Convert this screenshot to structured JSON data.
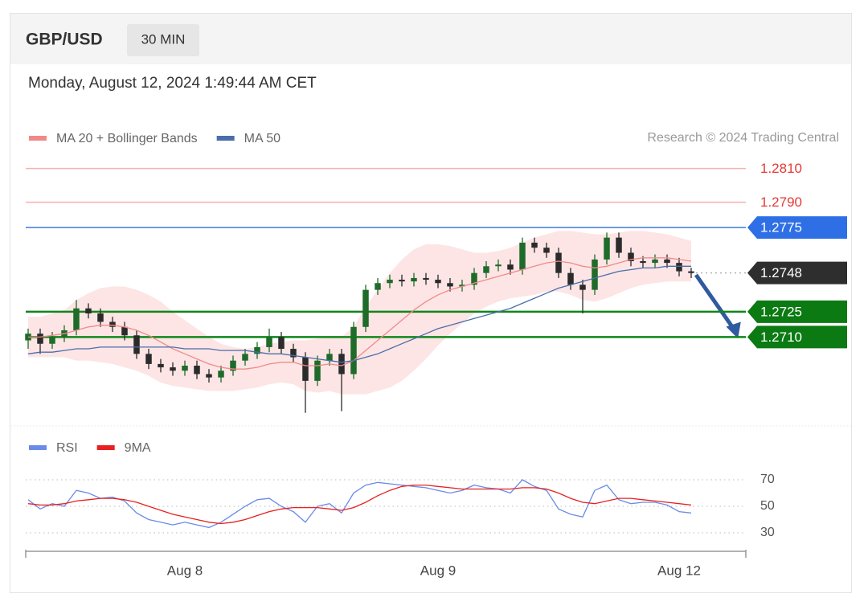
{
  "header": {
    "symbol": "GBP/USD",
    "timeframe": "30 MIN",
    "timestamp": "Monday, August 12, 2024 1:49:44 AM CET"
  },
  "chart_data": [
    {
      "type": "candlestick",
      "source": "Research © 2024 Trading Central",
      "ylim": [
        1.2662,
        1.2817
      ],
      "up_color": "#1e6b2a",
      "down_color": "#2b2b2b",
      "open": [
        1.2708,
        1.2712,
        1.2706,
        1.271,
        1.2714,
        1.2727,
        1.2724,
        1.2719,
        1.2716,
        1.2711,
        1.27,
        1.2694,
        1.2692,
        1.269,
        1.2693,
        1.2688,
        1.2686,
        1.269,
        1.2696,
        1.27,
        1.2704,
        1.271,
        1.2703,
        1.2698,
        1.2684,
        1.2696,
        1.27,
        1.2688,
        1.2716,
        1.2738,
        1.2742,
        1.2744,
        1.2743,
        1.2745,
        1.2744,
        1.2742,
        1.274,
        1.2741,
        1.2748,
        1.2752,
        1.2753,
        1.275,
        1.2766,
        1.2763,
        1.276,
        1.2748,
        1.2741,
        1.2738,
        1.2756,
        1.2769,
        1.276,
        1.2755,
        1.2754,
        1.2756,
        1.2754,
        1.2749
      ],
      "high": [
        1.2715,
        1.2715,
        1.2713,
        1.2717,
        1.2732,
        1.273,
        1.2727,
        1.2722,
        1.2719,
        1.2714,
        1.2703,
        1.2697,
        1.2695,
        1.2696,
        1.2696,
        1.2691,
        1.2693,
        1.2699,
        1.2703,
        1.2707,
        1.2715,
        1.2713,
        1.2706,
        1.2701,
        1.2699,
        1.2703,
        1.2703,
        1.2719,
        1.2741,
        1.2745,
        1.2747,
        1.2747,
        1.2748,
        1.2748,
        1.2747,
        1.2745,
        1.2744,
        1.2751,
        1.2755,
        1.2756,
        1.2756,
        1.2769,
        1.2769,
        1.2766,
        1.2763,
        1.2751,
        1.2744,
        1.2759,
        1.2772,
        1.2772,
        1.2763,
        1.2758,
        1.2759,
        1.2759,
        1.2757,
        1.2751
      ],
      "low": [
        1.2703,
        1.27,
        1.2703,
        1.2707,
        1.2711,
        1.2721,
        1.2716,
        1.2713,
        1.2708,
        1.2697,
        1.2691,
        1.2689,
        1.2687,
        1.2687,
        1.2685,
        1.2683,
        1.2683,
        1.2687,
        1.2693,
        1.2697,
        1.2701,
        1.27,
        1.2695,
        1.2665,
        1.2681,
        1.2693,
        1.2666,
        1.2685,
        1.2713,
        1.2735,
        1.2739,
        1.274,
        1.274,
        1.2741,
        1.2739,
        1.2737,
        1.2737,
        1.2738,
        1.2745,
        1.2749,
        1.2747,
        1.2747,
        1.276,
        1.2757,
        1.2745,
        1.2738,
        1.2724,
        1.2735,
        1.2753,
        1.2757,
        1.2752,
        1.2751,
        1.2751,
        1.2751,
        1.2746,
        1.2745
      ],
      "close": [
        1.2712,
        1.2706,
        1.271,
        1.2714,
        1.2727,
        1.2724,
        1.2719,
        1.2716,
        1.2711,
        1.27,
        1.2694,
        1.2692,
        1.269,
        1.2693,
        1.2688,
        1.2686,
        1.269,
        1.2696,
        1.27,
        1.2704,
        1.271,
        1.2703,
        1.2698,
        1.2684,
        1.2696,
        1.27,
        1.2688,
        1.2716,
        1.2738,
        1.2742,
        1.2744,
        1.2743,
        1.2745,
        1.2744,
        1.2742,
        1.274,
        1.2741,
        1.2748,
        1.2752,
        1.2753,
        1.275,
        1.2766,
        1.2763,
        1.276,
        1.2748,
        1.2741,
        1.2738,
        1.2756,
        1.2769,
        1.276,
        1.2755,
        1.2754,
        1.2756,
        1.2754,
        1.2749,
        1.2748
      ],
      "series": [
        {
          "name": "MA 20 + Bollinger Bands",
          "color": "#f08a8a",
          "values": [
            1.271,
            1.271,
            1.2711,
            1.2712,
            1.2714,
            1.2716,
            1.2717,
            1.2717,
            1.2716,
            1.2714,
            1.2711,
            1.2707,
            1.2703,
            1.27,
            1.2697,
            1.2694,
            1.2692,
            1.2691,
            1.2691,
            1.2692,
            1.2694,
            1.2695,
            1.2695,
            1.2693,
            1.2693,
            1.2694,
            1.2693,
            1.2696,
            1.2702,
            1.2708,
            1.2714,
            1.272,
            1.2726,
            1.2731,
            1.2735,
            1.2738,
            1.274,
            1.2742,
            1.2744,
            1.2746,
            1.2748,
            1.275,
            1.2752,
            1.2754,
            1.2755,
            1.2754,
            1.2752,
            1.2751,
            1.2752,
            1.2754,
            1.2756,
            1.2757,
            1.2757,
            1.2757,
            1.2756,
            1.2755
          ],
          "band_color": "#fde0e0",
          "upper": [
            1.2722,
            1.2722,
            1.2724,
            1.2726,
            1.2732,
            1.2736,
            1.2739,
            1.274,
            1.274,
            1.2738,
            1.2735,
            1.2731,
            1.2725,
            1.272,
            1.2715,
            1.271,
            1.2706,
            1.2704,
            1.2703,
            1.2704,
            1.2706,
            1.2707,
            1.2708,
            1.2708,
            1.2709,
            1.271,
            1.271,
            1.2716,
            1.2728,
            1.2738,
            1.2748,
            1.2756,
            1.2762,
            1.2765,
            1.2765,
            1.2764,
            1.2762,
            1.276,
            1.276,
            1.2761,
            1.2763,
            1.2766,
            1.2769,
            1.2771,
            1.2773,
            1.2773,
            1.2772,
            1.2771,
            1.2771,
            1.2772,
            1.2773,
            1.2773,
            1.2772,
            1.2771,
            1.2769,
            1.2767
          ],
          "lower": [
            1.2698,
            1.2698,
            1.2698,
            1.2698,
            1.2696,
            1.2696,
            1.2695,
            1.2694,
            1.2692,
            1.269,
            1.2687,
            1.2683,
            1.2681,
            1.268,
            1.2679,
            1.2678,
            1.2678,
            1.2678,
            1.2679,
            1.268,
            1.2682,
            1.2683,
            1.2682,
            1.2678,
            1.2677,
            1.2678,
            1.2676,
            1.2676,
            1.2676,
            1.2678,
            1.268,
            1.2684,
            1.269,
            1.2697,
            1.2705,
            1.2712,
            1.2718,
            1.2724,
            1.2728,
            1.2731,
            1.2733,
            1.2734,
            1.2735,
            1.2737,
            1.2737,
            1.2735,
            1.2732,
            1.2731,
            1.2733,
            1.2736,
            1.2739,
            1.2741,
            1.2742,
            1.2743,
            1.2743,
            1.2743
          ]
        },
        {
          "name": "MA 50",
          "color": "#4a6ea8",
          "values": [
            1.27,
            1.2701,
            1.2701,
            1.2702,
            1.2703,
            1.2703,
            1.2704,
            1.2704,
            1.2704,
            1.2704,
            1.2704,
            1.2704,
            1.2704,
            1.2703,
            1.2703,
            1.2703,
            1.2702,
            1.2702,
            1.2702,
            1.2701,
            1.27,
            1.27,
            1.2699,
            1.2698,
            1.2697,
            1.2696,
            1.2695,
            1.2696,
            1.2698,
            1.27,
            1.2703,
            1.2706,
            1.2709,
            1.2712,
            1.2715,
            1.2717,
            1.2719,
            1.2721,
            1.2723,
            1.2725,
            1.2727,
            1.273,
            1.2733,
            1.2736,
            1.2739,
            1.2741,
            1.2743,
            1.2745,
            1.2747,
            1.2749,
            1.275,
            1.2751,
            1.2751,
            1.2752,
            1.2752,
            1.2752
          ]
        }
      ],
      "levels": [
        {
          "value": 1.281,
          "label": "1.2810",
          "color": "#f6b0b0",
          "label_color": "#e53935"
        },
        {
          "value": 1.279,
          "label": "1.2790",
          "color": "#f6b0b0",
          "label_color": "#e53935"
        },
        {
          "value": 1.2775,
          "label": "1.2775",
          "color": "#3f7ae0",
          "tag_color": "#2f6fe6"
        },
        {
          "value": 1.2748,
          "label": "1.2748",
          "color": "#999999",
          "tag_color": "#2e2e2e",
          "dotted": true
        },
        {
          "value": 1.2725,
          "label": "1.2725",
          "color": "#11861a",
          "tag_color": "#0b7a12"
        },
        {
          "value": 1.271,
          "label": "1.2710",
          "color": "#11861a",
          "tag_color": "#0b7a12"
        }
      ]
    },
    {
      "type": "line",
      "ylim": [
        20,
        80
      ],
      "yticks": [
        30,
        50,
        70
      ],
      "categories": [
        null,
        null,
        null,
        null,
        null,
        null,
        null,
        null,
        null,
        null,
        null,
        null,
        null,
        "Aug 8",
        null,
        null,
        null,
        null,
        null,
        null,
        null,
        null,
        null,
        null,
        null,
        null,
        null,
        null,
        null,
        null,
        null,
        null,
        null,
        null,
        "Aug 9",
        null,
        null,
        null,
        null,
        null,
        null,
        null,
        null,
        null,
        null,
        null,
        null,
        null,
        null,
        null,
        null,
        null,
        null,
        null,
        "Aug 12",
        null
      ],
      "series": [
        {
          "name": "RSI",
          "color": "#6a8be8",
          "values": [
            55,
            48,
            52,
            50,
            62,
            60,
            56,
            57,
            54,
            45,
            40,
            38,
            36,
            38,
            36,
            34,
            38,
            44,
            50,
            55,
            56,
            50,
            46,
            38,
            50,
            52,
            45,
            60,
            66,
            68,
            67,
            66,
            65,
            64,
            62,
            60,
            62,
            66,
            64,
            63,
            60,
            70,
            65,
            62,
            48,
            44,
            42,
            62,
            66,
            55,
            52,
            53,
            53,
            51,
            46,
            45
          ]
        },
        {
          "name": "9MA",
          "color": "#e82020",
          "values": [
            52,
            51,
            51,
            52,
            54,
            55,
            56,
            56,
            55,
            53,
            50,
            47,
            44,
            42,
            40,
            38,
            37,
            38,
            40,
            43,
            46,
            48,
            49,
            49,
            49,
            48,
            47,
            49,
            53,
            58,
            62,
            65,
            66,
            66,
            65,
            64,
            63,
            63,
            63,
            63,
            63,
            64,
            64,
            63,
            60,
            56,
            53,
            52,
            54,
            56,
            56,
            55,
            54,
            53,
            52,
            51
          ]
        }
      ]
    }
  ]
}
